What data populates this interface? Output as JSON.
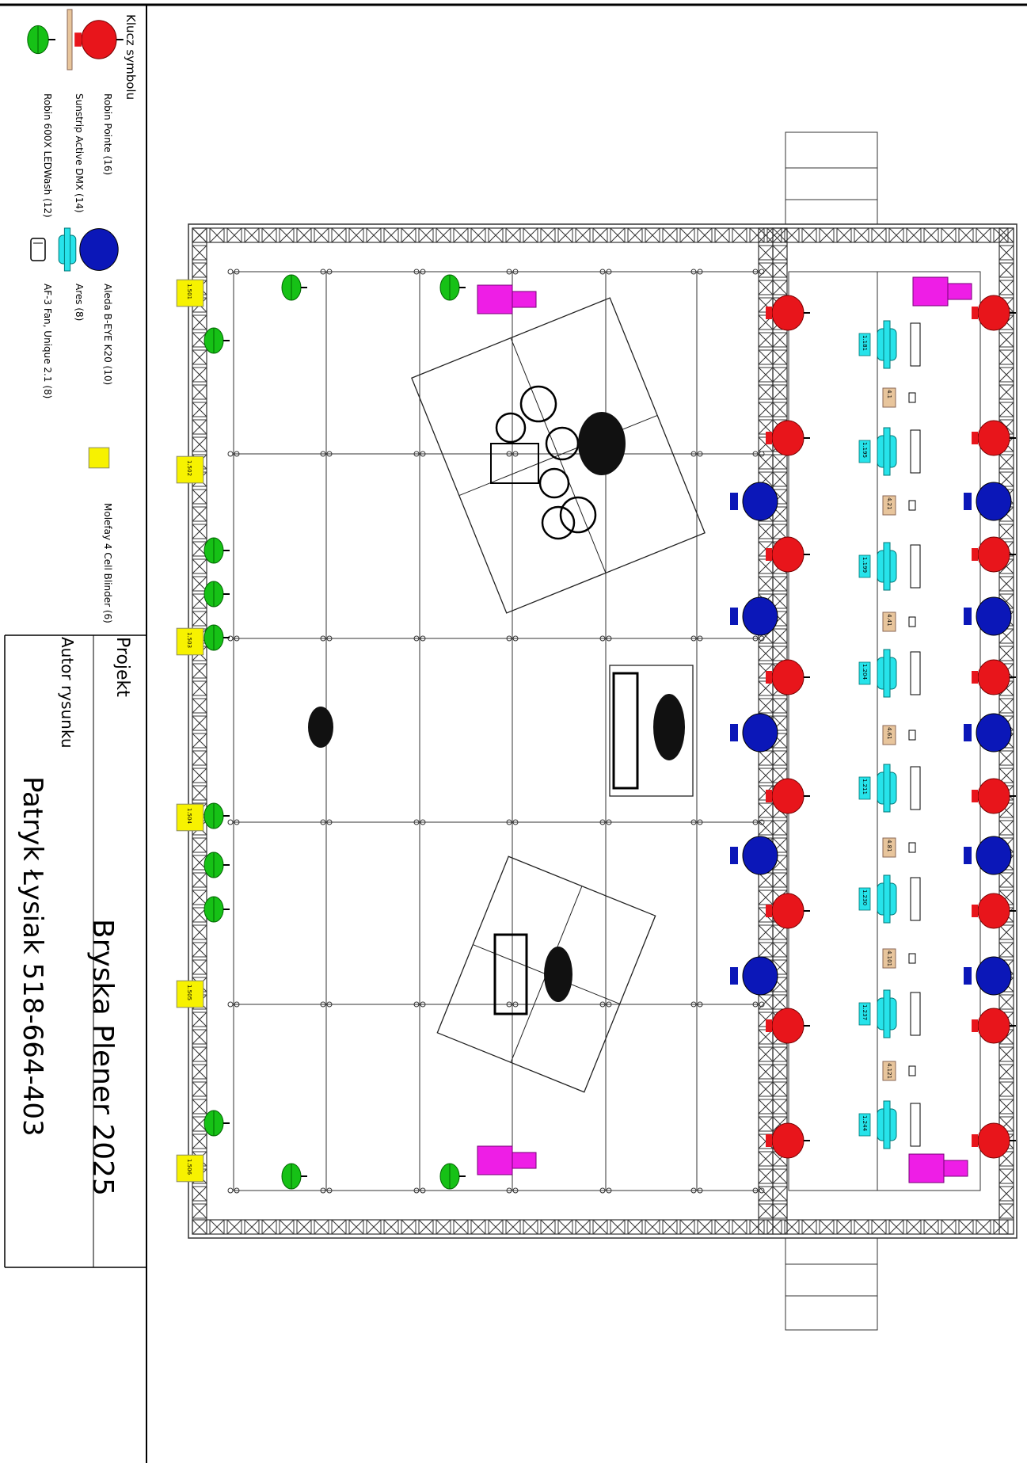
{
  "legend": {
    "title": "Klucz symbolu",
    "items": [
      {
        "label": "Robin Pointe (16)",
        "icon": "robin-pointe-icon",
        "color": "#e8151b"
      },
      {
        "label": "Sunstrip Active DMX (14)",
        "icon": "sunstrip-icon",
        "color": "#e8c59c"
      },
      {
        "label": "Robin 600X LEDWash (12)",
        "icon": "robin-wash-icon",
        "color": "#16c116"
      },
      {
        "label": "Aleda B-EYE K20 (10)",
        "icon": "b-eye-icon",
        "color": "#0b17b8"
      },
      {
        "label": "Ares (8)",
        "icon": "ares-icon",
        "color": "#27e3ea"
      },
      {
        "label": "AF-3 Fan, Unique 2.1 (8)",
        "icon": "fan-icon",
        "color": "#ffffff"
      },
      {
        "label": "Molefay 4 Cell Blinder (6)",
        "icon": "blinder-icon",
        "color": "#f7f200"
      }
    ]
  },
  "title_block": {
    "project_label": "Projekt",
    "project_name": "Bryska Plener 2025",
    "author_label": "Autor rysunku",
    "author_name": "Patryk Łysiak 518-664-403"
  },
  "fixture_colors": {
    "pointe": "#e8151b",
    "beye": "#0b17b8",
    "ares": "#27e3ea",
    "wash": "#16c116",
    "blinder": "#f7f200",
    "hazer": "#ee1ee6",
    "sunstrip": "#e8c59c"
  },
  "fixtures": {
    "blinders": [
      "1.501",
      "1.502",
      "1.503",
      "1.504",
      "1.505",
      "1.506"
    ],
    "ares": [
      "1.181",
      "1.195",
      "1.199",
      "1.204",
      "1.211",
      "1.230",
      "1.237",
      "1.244"
    ],
    "sunstrips": [
      "4.1",
      "4.21",
      "4.41",
      "4.61",
      "4.81",
      "4.101",
      "4.121"
    ]
  }
}
